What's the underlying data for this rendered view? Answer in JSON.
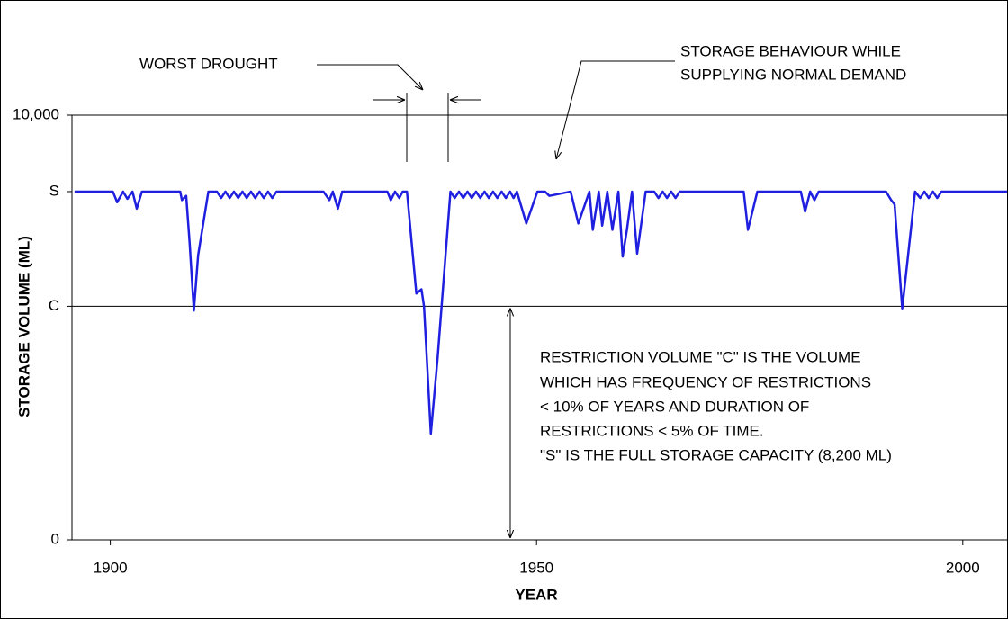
{
  "chart_data": {
    "type": "line",
    "ylabel": "STORAGE VOLUME (ML)",
    "xlabel": "YEAR",
    "x": [
      1895.8,
      1900.3,
      1900.8,
      1901.5,
      1902.0,
      1902.6,
      1903.1,
      1903.7,
      1908.2,
      1908.4,
      1908.9,
      1909.3,
      1909.8,
      1910.3,
      1911.5,
      1912.5,
      1913.0,
      1913.5,
      1914.0,
      1914.5,
      1915.0,
      1915.5,
      1916.0,
      1916.5,
      1917.0,
      1917.5,
      1918.0,
      1918.5,
      1919.0,
      1919.5,
      1925.0,
      1925.7,
      1926.1,
      1926.7,
      1927.2,
      1932.5,
      1932.9,
      1933.4,
      1933.9,
      1934.3,
      1934.8,
      1935.9,
      1936.5,
      1936.8,
      1937.6,
      1938.4,
      1938.9,
      1939.9,
      1940.4,
      1940.9,
      1941.4,
      1941.9,
      1942.4,
      1942.9,
      1943.4,
      1943.9,
      1944.4,
      1944.9,
      1945.4,
      1945.9,
      1946.4,
      1946.9,
      1947.3,
      1947.7,
      1948.8,
      1950.1,
      1951.0,
      1951.5,
      1954.0,
      1954.9,
      1956.2,
      1956.6,
      1957.3,
      1957.7,
      1958.3,
      1958.9,
      1959.6,
      1960.1,
      1960.6,
      1961.2,
      1961.8,
      1962.8,
      1963.8,
      1964.3,
      1964.8,
      1965.3,
      1965.8,
      1966.3,
      1966.8,
      1974.3,
      1974.8,
      1975.9,
      1981.0,
      1981.5,
      1982.1,
      1982.6,
      1983.1,
      1991.0,
      1991.6,
      1992.0,
      1992.9,
      1994.4,
      1995.0,
      1995.5,
      1996.0,
      1996.5,
      1997.0,
      1997.5,
      2005.2
    ],
    "values": [
      8200,
      8200,
      7950,
      8200,
      8030,
      8200,
      7800,
      8200,
      8200,
      8000,
      8100,
      7000,
      5400,
      6700,
      8200,
      8200,
      8050,
      8200,
      8050,
      8200,
      8050,
      8200,
      8050,
      8200,
      8050,
      8200,
      8050,
      8200,
      8050,
      8200,
      8200,
      8000,
      8200,
      7800,
      8200,
      8200,
      8000,
      8200,
      8050,
      8200,
      8200,
      5800,
      5900,
      5500,
      2500,
      4300,
      5600,
      8200,
      8050,
      8200,
      8050,
      8200,
      8050,
      8200,
      8050,
      8200,
      8050,
      8200,
      8050,
      8200,
      8050,
      8200,
      8050,
      8200,
      7450,
      8200,
      8200,
      8100,
      8200,
      7450,
      8200,
      7300,
      8200,
      7400,
      8200,
      7300,
      8200,
      6670,
      7300,
      8200,
      6740,
      8200,
      8200,
      8050,
      8200,
      8050,
      8200,
      8050,
      8200,
      8200,
      7300,
      8200,
      8200,
      7730,
      8200,
      8000,
      8200,
      8200,
      8000,
      7900,
      5450,
      8200,
      8050,
      8200,
      8050,
      8200,
      8050,
      8200,
      8200
    ],
    "color": "#1f1fe0",
    "xlim": [
      1895.5,
      2005.3
    ],
    "xticks": [
      1900,
      1950,
      2000
    ],
    "ylim": [
      0,
      10000
    ],
    "yticks": [
      0,
      {
        "value": 5500,
        "label": "C"
      },
      {
        "value": 8200,
        "label": "S"
      },
      {
        "value": 10000,
        "label": "10,000"
      }
    ],
    "annotations": {
      "worst_drought": "WORST DROUGHT",
      "storage_behaviour": [
        "STORAGE BEHAVIOUR WHILE",
        "SUPPLYING NORMAL DEMAND"
      ],
      "restriction_note": [
        "RESTRICTION VOLUME \"C\" IS THE VOLUME",
        "WHICH HAS FREQUENCY OF RESTRICTIONS",
        "< 10% OF YEARS AND DURATION OF",
        "RESTRICTIONS < 5% OF TIME.",
        "\"S\" IS THE FULL STORAGE CAPACITY (8,200 ML)"
      ]
    }
  }
}
